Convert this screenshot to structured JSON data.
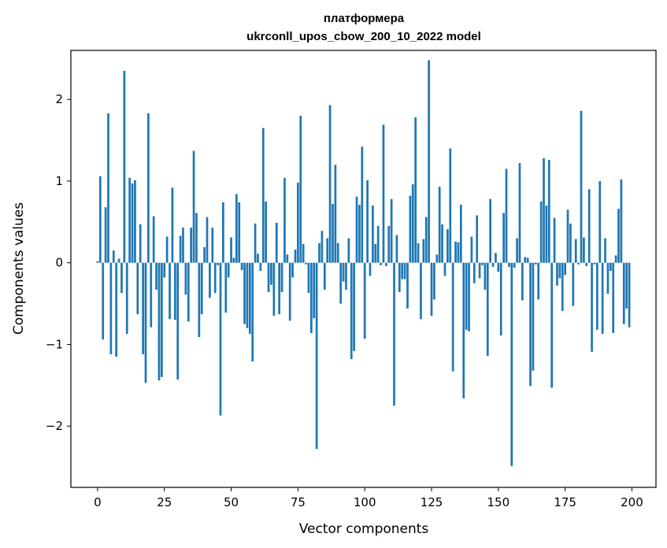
{
  "chart_data": {
    "type": "bar",
    "title": "платформера",
    "subtitle": "ukrconll_upos_cbow_200_10_2022 model",
    "xlabel": "Vector components",
    "ylabel": "Components values",
    "xlim": [
      -10,
      209
    ],
    "ylim": [
      -2.75,
      2.6
    ],
    "xticks": [
      0,
      25,
      50,
      75,
      100,
      125,
      150,
      175,
      200
    ],
    "yticks": [
      -2,
      -1,
      0,
      1,
      2
    ],
    "xtick_labels": [
      "0",
      "25",
      "50",
      "75",
      "100",
      "125",
      "150",
      "175",
      "200"
    ],
    "ytick_labels": [
      "−2",
      "−1",
      "0",
      "1",
      "2"
    ],
    "grid": false,
    "bar_color": "#1f77b4",
    "values": [
      0.02,
      1.06,
      -0.94,
      0.68,
      1.83,
      -1.12,
      0.15,
      -1.15,
      0.05,
      -0.37,
      2.35,
      -0.87,
      1.04,
      0.97,
      1.01,
      -0.63,
      0.47,
      -1.12,
      -1.47,
      1.83,
      -0.79,
      0.57,
      -0.33,
      -1.44,
      -1.4,
      -0.18,
      0.32,
      -0.69,
      0.92,
      -0.7,
      -1.43,
      0.33,
      0.43,
      -0.39,
      -0.72,
      0.43,
      1.37,
      0.61,
      -0.91,
      -0.63,
      0.19,
      0.56,
      -0.43,
      0.43,
      -0.37,
      -0.03,
      -1.87,
      0.74,
      -0.61,
      -0.18,
      0.31,
      0.06,
      0.84,
      0.74,
      -0.09,
      -0.75,
      -0.8,
      -0.87,
      -1.21,
      0.48,
      0.11,
      -0.1,
      1.65,
      0.75,
      -0.36,
      -0.27,
      -0.65,
      0.49,
      -0.63,
      -0.36,
      1.04,
      0.1,
      -0.71,
      -0.18,
      0.16,
      0.98,
      1.8,
      0.23,
      -0.02,
      -0.37,
      -0.86,
      -0.68,
      -2.28,
      0.24,
      0.39,
      -0.33,
      0.3,
      1.93,
      0.72,
      1.2,
      0.24,
      -0.5,
      -0.23,
      -0.33,
      0.3,
      -1.18,
      -1.08,
      0.81,
      0.71,
      1.42,
      -0.93,
      1.01,
      -0.16,
      0.7,
      0.23,
      0.45,
      -0.03,
      1.69,
      -0.04,
      0.45,
      0.78,
      -1.75,
      0.34,
      -0.36,
      -0.2,
      -0.2,
      -0.56,
      0.82,
      0.96,
      1.78,
      0.24,
      -0.69,
      0.29,
      0.56,
      2.48,
      -0.65,
      -0.45,
      0.1,
      0.93,
      0.47,
      -0.16,
      0.41,
      1.4,
      -1.33,
      0.26,
      0.25,
      0.71,
      -1.66,
      -0.82,
      -0.84,
      0.32,
      -0.25,
      0.58,
      -0.19,
      -0.03,
      -0.33,
      -1.14,
      0.78,
      -0.05,
      0.12,
      -0.11,
      -0.89,
      0.61,
      1.15,
      -0.05,
      -2.49,
      -0.06,
      0.3,
      1.22,
      -0.46,
      0.07,
      0.06,
      -1.51,
      -1.32,
      -0.02,
      -0.45,
      0.75,
      1.28,
      0.7,
      1.26,
      -1.53,
      0.55,
      -0.28,
      -0.19,
      -0.59,
      -0.15,
      0.65,
      0.48,
      -0.53,
      0.29,
      -0.02,
      1.86,
      0.31,
      -0.04,
      0.9,
      -1.09,
      -0.02,
      -0.82,
      1.0,
      -0.87,
      0.3,
      -0.38,
      -0.1,
      -0.86,
      0.09,
      0.66,
      1.02,
      -0.75,
      -0.56,
      -0.79
    ]
  }
}
